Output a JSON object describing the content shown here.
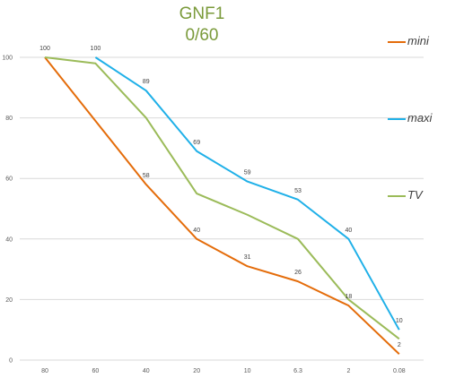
{
  "chart_data": {
    "type": "line",
    "title": "GNF1",
    "subtitle": "0/60",
    "categories": [
      "80",
      "60",
      "40",
      "20",
      "10",
      "6.3",
      "2",
      "0.08"
    ],
    "ylim": [
      0,
      100
    ],
    "yticks": [
      0,
      20,
      40,
      60,
      80,
      100
    ],
    "grid": true,
    "legend_position": "right",
    "series": [
      {
        "name": "mini",
        "color": "#e46c0a",
        "values": [
          100,
          79,
          58,
          40,
          31,
          26,
          18,
          2
        ],
        "labels": [
          null,
          null,
          "58",
          "40",
          "31",
          "26",
          "18",
          "2"
        ]
      },
      {
        "name": "maxi",
        "color": "#1fb0e8",
        "values": [
          null,
          100,
          89,
          69,
          59,
          53,
          40,
          10
        ],
        "labels": [
          null,
          "100",
          "89",
          "69",
          "59",
          "53",
          "40",
          "10"
        ]
      },
      {
        "name": "TV",
        "color": "#9bbb59",
        "values": [
          100,
          98,
          80,
          55,
          48,
          40,
          20,
          7
        ],
        "labels": [
          "100",
          null,
          null,
          null,
          null,
          null,
          null,
          null
        ]
      }
    ]
  }
}
